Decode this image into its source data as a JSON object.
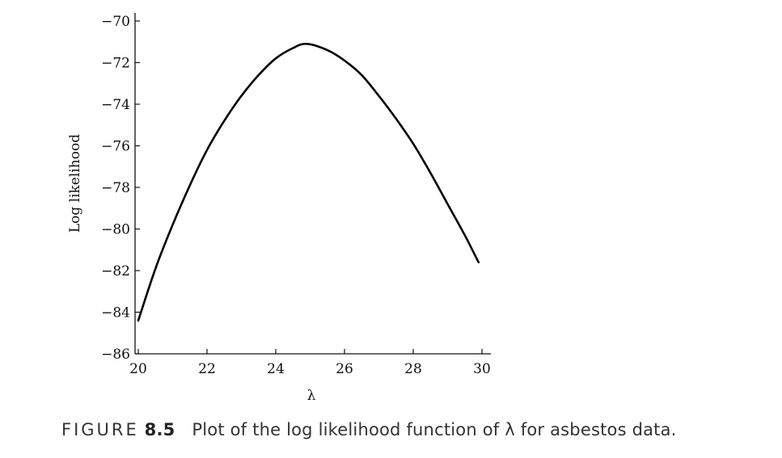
{
  "chart_data": {
    "type": "line",
    "xlabel": "λ",
    "ylabel": "Log likelihood",
    "xlim": [
      20,
      30
    ],
    "ylim": [
      -86,
      -70
    ],
    "xticks": [
      20,
      22,
      24,
      26,
      28,
      30
    ],
    "yticks": [
      -70,
      -72,
      -74,
      -76,
      -78,
      -80,
      -82,
      -84,
      -86
    ],
    "xtick_labels": [
      "20",
      "22",
      "24",
      "26",
      "28",
      "30"
    ],
    "ytick_labels": [
      "−70",
      "−72",
      "−74",
      "−76",
      "−78",
      "−80",
      "−82",
      "−84",
      "−86"
    ],
    "grid": false,
    "series": [
      {
        "x": [
          20.0,
          20.5,
          21.0,
          21.5,
          22.0,
          22.5,
          23.0,
          23.5,
          24.0,
          24.5,
          24.9,
          25.5,
          26.0,
          26.5,
          27.0,
          27.5,
          28.0,
          28.5,
          29.0,
          29.5,
          29.9
        ],
        "y": [
          -84.4,
          -81.9,
          -79.8,
          -77.9,
          -76.2,
          -74.8,
          -73.6,
          -72.6,
          -71.8,
          -71.3,
          -71.1,
          -71.4,
          -71.9,
          -72.6,
          -73.6,
          -74.7,
          -75.9,
          -77.3,
          -78.8,
          -80.3,
          -81.6
        ]
      }
    ]
  },
  "caption": {
    "figure_word": "FIGURE",
    "number": "8.5",
    "text": "Plot of the log likelihood function of λ for asbestos data."
  }
}
